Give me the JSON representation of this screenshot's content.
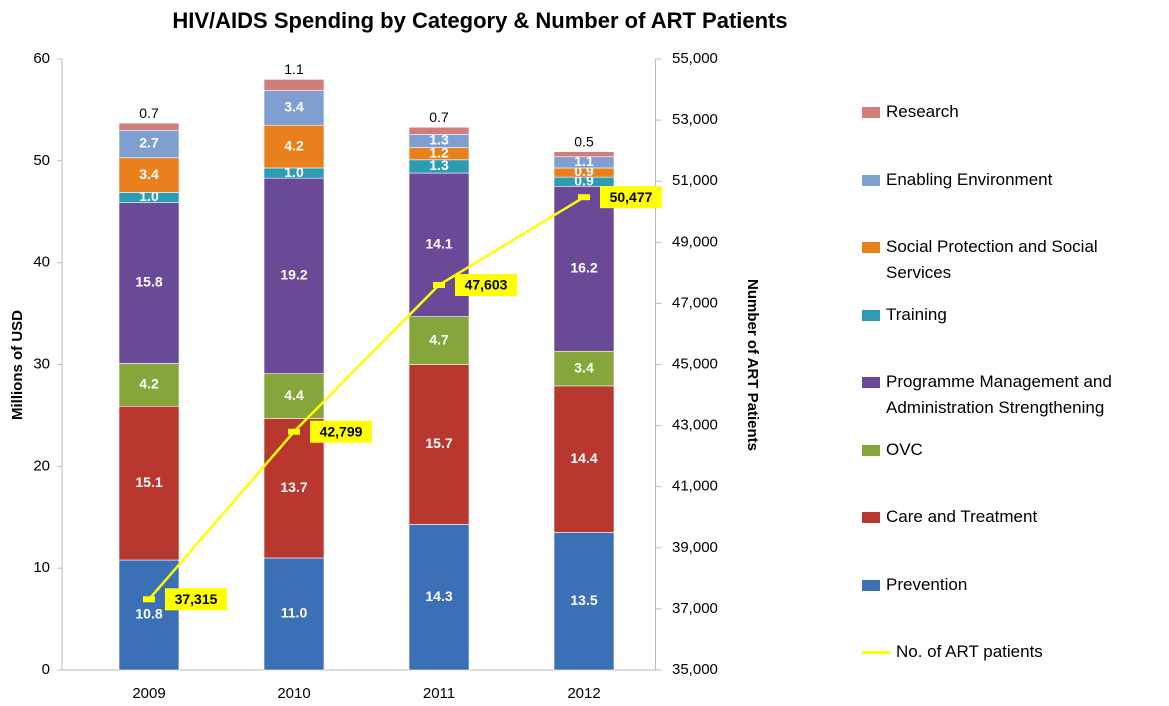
{
  "chart_data": {
    "type": "bar",
    "stacked": true,
    "title": "HIV/AIDS Spending by Category & Number of ART Patients",
    "ylabel": "Millions of USD",
    "y2label": "Number of ART Patients",
    "categories": [
      "2009",
      "2010",
      "2011",
      "2012"
    ],
    "ylim": [
      0,
      60
    ],
    "yticks": [
      0,
      10,
      20,
      30,
      40,
      50,
      60
    ],
    "y2lim": [
      35000,
      55000
    ],
    "y2ticks": [
      {
        "value": 35000,
        "label": "35,000"
      },
      {
        "value": 37000,
        "label": "37,000"
      },
      {
        "value": 39000,
        "label": "39,000"
      },
      {
        "value": 41000,
        "label": "41,000"
      },
      {
        "value": 43000,
        "label": "43,000"
      },
      {
        "value": 45000,
        "label": "45,000"
      },
      {
        "value": 47000,
        "label": "47,000"
      },
      {
        "value": 49000,
        "label": "49,000"
      },
      {
        "value": 51000,
        "label": "51,000"
      },
      {
        "value": 53000,
        "label": "53,000"
      },
      {
        "value": 55000,
        "label": "55,000"
      }
    ],
    "grid": false,
    "legend": "right",
    "series": [
      {
        "name": "Prevention",
        "color": "#3b6fb6",
        "values": [
          10.8,
          11.0,
          14.3,
          13.5
        ],
        "value_labels": [
          "10.8",
          "11.0",
          "14.3",
          "13.5"
        ]
      },
      {
        "name": "Care and Treatment",
        "color": "#b8382f",
        "values": [
          15.1,
          13.7,
          15.7,
          14.4
        ],
        "value_labels": [
          "15.1",
          "13.7",
          "15.7",
          "14.4"
        ]
      },
      {
        "name": "OVC",
        "color": "#86a53b",
        "values": [
          4.2,
          4.4,
          4.7,
          3.4
        ],
        "value_labels": [
          "4.2",
          "4.4",
          "4.7",
          "3.4"
        ]
      },
      {
        "name": "Programme Management and Administration Strengthening",
        "color": "#6a4a96",
        "values": [
          15.8,
          19.2,
          14.1,
          16.2
        ],
        "value_labels": [
          "15.8",
          "19.2",
          "14.1",
          "16.2"
        ]
      },
      {
        "name": "Training",
        "color": "#2c9bb3",
        "values": [
          1.0,
          1.0,
          1.3,
          0.9
        ],
        "value_labels": [
          "1.0",
          "1.0",
          "1.3",
          "0.9"
        ]
      },
      {
        "name": "Social Protection and Social Services",
        "color": "#e8801e",
        "values": [
          3.4,
          4.2,
          1.2,
          0.9
        ],
        "value_labels": [
          "3.4",
          "4.2",
          "1.2",
          "0.9"
        ]
      },
      {
        "name": "Enabling Environment",
        "color": "#7f9fd1",
        "values": [
          2.7,
          3.4,
          1.3,
          1.1
        ],
        "value_labels": [
          "2.7",
          "3.4",
          "1.3",
          "1.1"
        ]
      },
      {
        "name": "Research",
        "color": "#d07d7b",
        "values": [
          0.7,
          1.1,
          0.7,
          0.5
        ],
        "value_labels": [
          "0.7",
          "1.1",
          "0.7",
          "0.5"
        ]
      },
      {
        "name": "No. of ART patients",
        "type": "line",
        "axis": "y2",
        "color": "#ffff00",
        "values": [
          37315,
          42799,
          47603,
          50477
        ],
        "value_labels": [
          "37,315",
          "42,799",
          "47,603",
          "50,477"
        ]
      }
    ]
  }
}
